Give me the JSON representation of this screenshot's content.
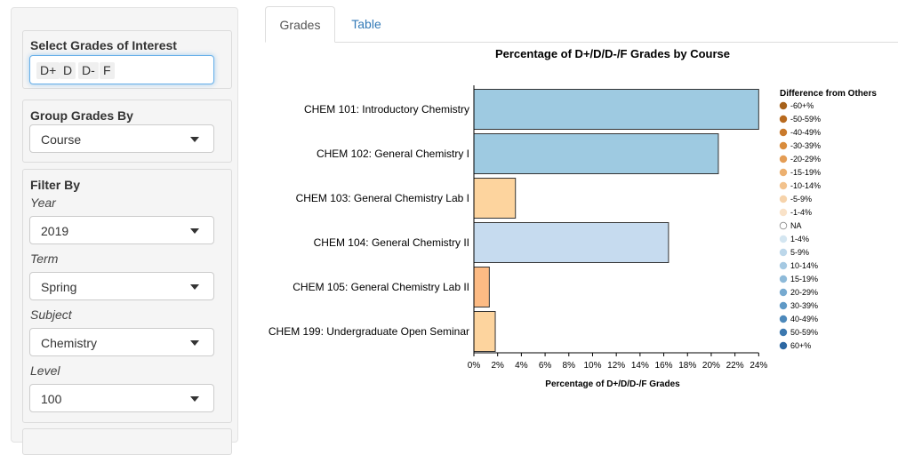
{
  "sidebar": {
    "grades_panel": {
      "title": "Select Grades of Interest",
      "chips": [
        "D+",
        "D",
        "D-",
        "F"
      ]
    },
    "group_panel": {
      "title": "Group Grades By",
      "value": "Course"
    },
    "filter_panel": {
      "title": "Filter By",
      "year": {
        "label": "Year",
        "value": "2019"
      },
      "term": {
        "label": "Term",
        "value": "Spring"
      },
      "subject": {
        "label": "Subject",
        "value": "Chemistry"
      },
      "level": {
        "label": "Level",
        "value": "100"
      }
    }
  },
  "tabs": [
    {
      "label": "Grades",
      "active": true
    },
    {
      "label": "Table",
      "active": false
    }
  ],
  "colors": {
    "accent": "#337ab7",
    "focus": "#66afe9"
  },
  "chart_data": {
    "type": "bar",
    "orientation": "horizontal",
    "title": "Percentage of D+/D/D-/F Grades by Course",
    "xlabel": "Percentage of D+/D/D-/F Grades",
    "ylabel": "",
    "xlim": [
      0,
      24.5
    ],
    "x_ticks": [
      0,
      2,
      4,
      6,
      8,
      10,
      12,
      14,
      16,
      18,
      20,
      22,
      24
    ],
    "x_tick_labels": [
      "0%",
      "2%",
      "4%",
      "6%",
      "8%",
      "10%",
      "12%",
      "14%",
      "16%",
      "18%",
      "20%",
      "22%",
      "24%"
    ],
    "grid": false,
    "categories": [
      "CHEM 101: Introductory Chemistry",
      "CHEM 102: General Chemistry I",
      "CHEM 103: General Chemistry Lab I",
      "CHEM 104: General Chemistry II",
      "CHEM 105: General Chemistry Lab II",
      "CHEM 199: Undergraduate Open Seminar"
    ],
    "values": [
      24.0,
      20.6,
      3.5,
      16.4,
      1.3,
      1.8
    ],
    "bar_colors": [
      "#9ecae1",
      "#9ecae1",
      "#fdd49e",
      "#c6dbef",
      "#fdbb84",
      "#fdd49e"
    ],
    "legend": {
      "title": "Difference from Others",
      "placement": "right",
      "items": [
        {
          "label": "-60+%",
          "color": "#a6611a"
        },
        {
          "label": "-50-59%",
          "color": "#b86a1f"
        },
        {
          "label": "-40-49%",
          "color": "#c97a2c"
        },
        {
          "label": "-30-39%",
          "color": "#d98c3c"
        },
        {
          "label": "-20-29%",
          "color": "#e49d55"
        },
        {
          "label": "-15-19%",
          "color": "#ecb070"
        },
        {
          "label": "-10-14%",
          "color": "#f2c28d"
        },
        {
          "label": "-5-9%",
          "color": "#f6d3ab"
        },
        {
          "label": "-1-4%",
          "color": "#f9e2c8"
        },
        {
          "label": "NA",
          "color": "#ffffff"
        },
        {
          "label": "1-4%",
          "color": "#d4e6f1"
        },
        {
          "label": "5-9%",
          "color": "#bcd7ea"
        },
        {
          "label": "10-14%",
          "color": "#a5c9e2"
        },
        {
          "label": "15-19%",
          "color": "#8ebad9"
        },
        {
          "label": "20-29%",
          "color": "#77aad0"
        },
        {
          "label": "30-39%",
          "color": "#5f99c6"
        },
        {
          "label": "40-49%",
          "color": "#4d89bb"
        },
        {
          "label": "50-59%",
          "color": "#3c78af"
        },
        {
          "label": "60+%",
          "color": "#2c67a2"
        }
      ]
    }
  }
}
